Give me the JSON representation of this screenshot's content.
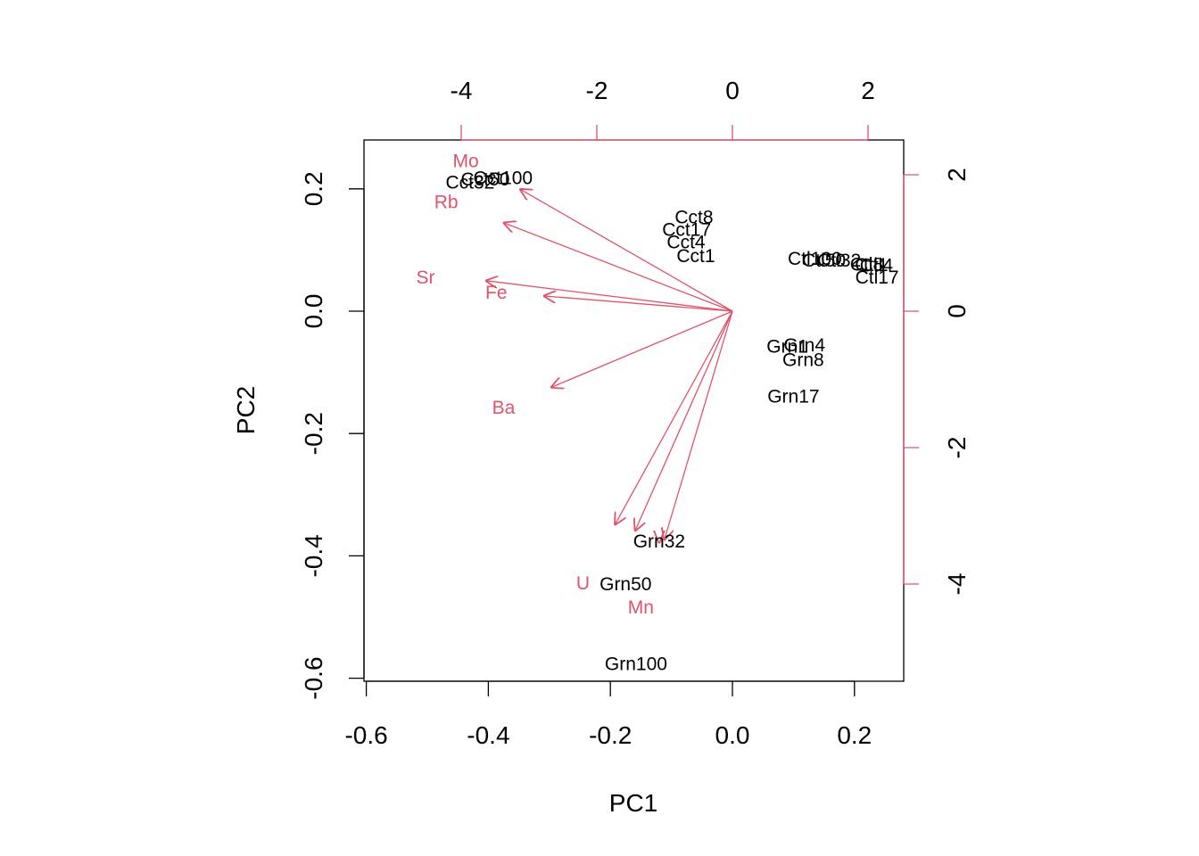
{
  "chart_data": {
    "type": "scatter",
    "subtype": "pca-biplot",
    "xlabel": "PC1",
    "ylabel": "PC2",
    "bottom_axis": {
      "ticks": [
        -0.6,
        -0.4,
        -0.2,
        0.0,
        0.2
      ],
      "labels": [
        "-0.6",
        "-0.4",
        "-0.2",
        "0.0",
        "0.2"
      ],
      "range": [
        -0.6,
        0.28
      ]
    },
    "left_axis": {
      "ticks": [
        -0.6,
        -0.4,
        -0.2,
        0.0,
        0.2
      ],
      "labels": [
        "-0.6",
        "-0.4",
        "-0.2",
        "0.0",
        "0.2"
      ],
      "range": [
        -0.6,
        0.28
      ]
    },
    "top_axis": {
      "ticks": [
        -4,
        -2,
        0,
        2
      ],
      "labels": [
        "-4",
        "-2",
        "0",
        "2"
      ]
    },
    "right_axis": {
      "ticks": [
        -4,
        -2,
        0,
        2
      ],
      "labels": [
        "-4",
        "-2",
        "0",
        "2"
      ]
    },
    "grid": false,
    "colors": {
      "observations": "#000000",
      "variables": "#df536b",
      "frame": "#000000"
    },
    "observations": [
      {
        "label": "Cct32",
        "x": -0.43,
        "y": 0.21
      },
      {
        "label": "Cct50",
        "x": -0.405,
        "y": 0.215
      },
      {
        "label": "Cct100",
        "x": -0.376,
        "y": 0.217
      },
      {
        "label": "Cct8",
        "x": -0.063,
        "y": 0.153
      },
      {
        "label": "Cct17",
        "x": -0.075,
        "y": 0.133
      },
      {
        "label": "Cct4",
        "x": -0.076,
        "y": 0.112
      },
      {
        "label": "Cct1",
        "x": -0.06,
        "y": 0.09
      },
      {
        "label": "Ctl100",
        "x": 0.135,
        "y": 0.085
      },
      {
        "label": "Ctl50",
        "x": 0.15,
        "y": 0.082
      },
      {
        "label": "Ctl32",
        "x": 0.175,
        "y": 0.082
      },
      {
        "label": "Ctl8",
        "x": 0.22,
        "y": 0.076
      },
      {
        "label": "Ctl1",
        "x": 0.228,
        "y": 0.075
      },
      {
        "label": "Ctl4",
        "x": 0.236,
        "y": 0.074
      },
      {
        "label": "Ctl17",
        "x": 0.237,
        "y": 0.055
      },
      {
        "label": "Grn1",
        "x": 0.09,
        "y": -0.058
      },
      {
        "label": "Grn4",
        "x": 0.118,
        "y": -0.056
      },
      {
        "label": "Grn8",
        "x": 0.116,
        "y": -0.08
      },
      {
        "label": "Grn17",
        "x": 0.1,
        "y": -0.14
      },
      {
        "label": "Grn32",
        "x": -0.12,
        "y": -0.377
      },
      {
        "label": "Grn50",
        "x": -0.175,
        "y": -0.447
      },
      {
        "label": "Grn100",
        "x": -0.158,
        "y": -0.577
      }
    ],
    "variables": [
      {
        "label": "Mo",
        "arrow_x": -0.349,
        "arrow_y": 0.2,
        "label_x": -0.437,
        "label_y": 0.245
      },
      {
        "label": "Rb",
        "arrow_x": -0.376,
        "arrow_y": 0.145,
        "label_x": -0.469,
        "label_y": 0.178
      },
      {
        "label": "Sr",
        "arrow_x": -0.405,
        "arrow_y": 0.05,
        "label_x": -0.503,
        "label_y": 0.055
      },
      {
        "label": "Fe",
        "arrow_x": -0.31,
        "arrow_y": 0.025,
        "label_x": -0.387,
        "label_y": 0.03
      },
      {
        "label": "Ba",
        "arrow_x": -0.298,
        "arrow_y": -0.125,
        "label_x": -0.375,
        "label_y": -0.158
      },
      {
        "label": "U",
        "arrow_x": -0.193,
        "arrow_y": -0.35,
        "label_x": -0.245,
        "label_y": -0.445
      },
      {
        "label": "V",
        "arrow_x": -0.112,
        "arrow_y": -0.375,
        "label_x": -0.12,
        "label_y": -0.37
      },
      {
        "label": "Mn",
        "arrow_x": -0.16,
        "arrow_y": -0.36,
        "label_x": -0.15,
        "label_y": -0.485
      }
    ]
  }
}
